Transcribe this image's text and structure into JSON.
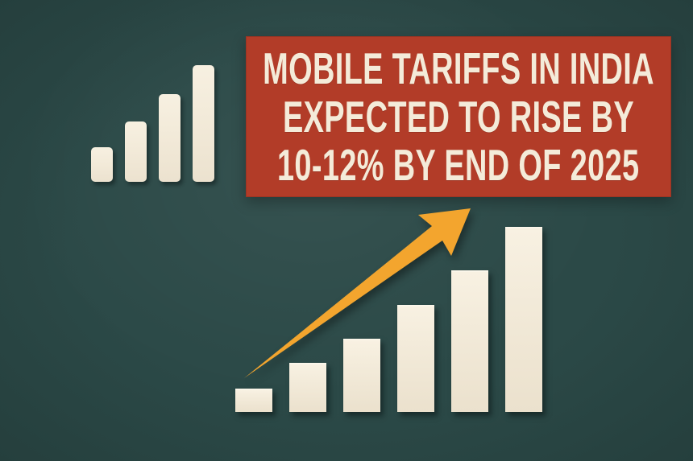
{
  "title": "Mobile tariffs in India infographic",
  "colors": {
    "background": "#2b4947",
    "banner_background": "#b23c28",
    "headline_text": "#f4ebd9",
    "bar_fill": "#f3ebda",
    "arrow": "#f3a52e"
  },
  "banner": {
    "lines": [
      "MOBILE TARIFFS IN INDIA",
      "EXPECTED TO RISE BY",
      "10-12% BY END OF 2025"
    ]
  },
  "chart_data": [
    {
      "type": "bar",
      "title": "Decorative signal-strength rising bars (top left)",
      "categories": [
        "1",
        "2",
        "3",
        "4"
      ],
      "values": [
        43,
        75,
        109,
        145
      ],
      "xlabel": "",
      "ylabel": "",
      "ylim": [
        0,
        145
      ],
      "grid": false,
      "legend": false,
      "units": "relative height (px)",
      "bar_style": "rounded cream paper-cut bars on teal background"
    },
    {
      "type": "bar",
      "title": "Decorative rising bar chart with upward growth arrow (bottom right)",
      "categories": [
        "1",
        "2",
        "3",
        "4",
        "5",
        "6"
      ],
      "values": [
        29,
        61,
        91,
        133,
        176,
        230
      ],
      "xlabel": "",
      "ylabel": "",
      "ylim": [
        0,
        230
      ],
      "grid": false,
      "legend": false,
      "units": "relative height (px)",
      "annotations": [
        "orange upward arrow from first bar toward top-right"
      ],
      "bar_style": "square-cornered cream paper-cut bars on teal background"
    }
  ]
}
